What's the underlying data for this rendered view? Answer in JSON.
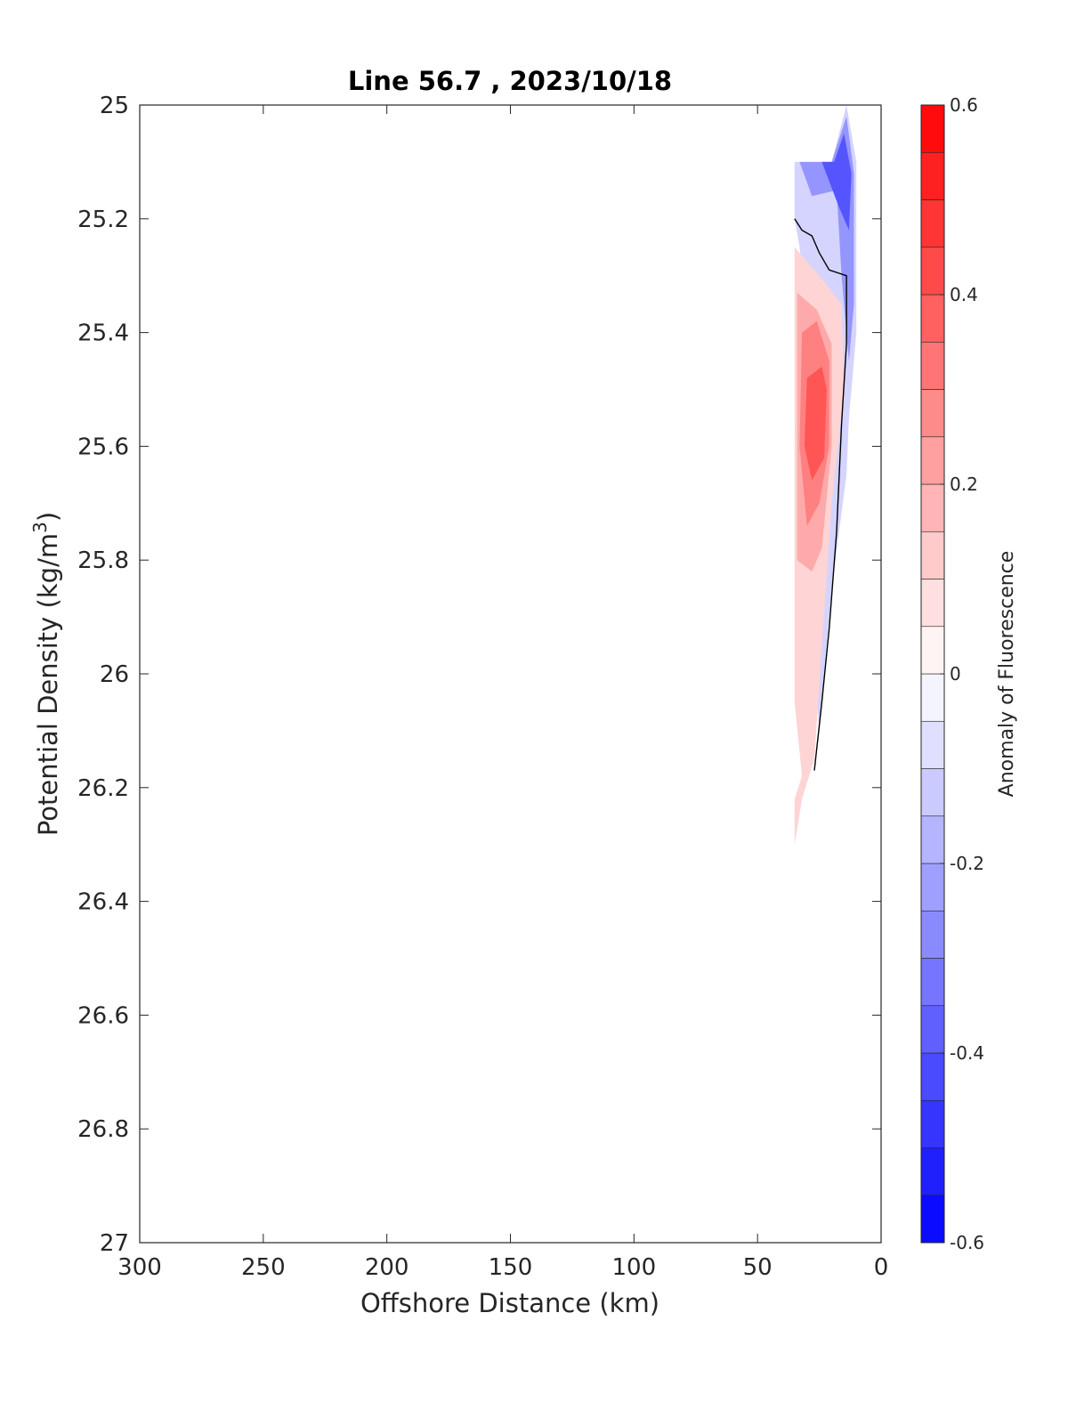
{
  "chart_data": {
    "type": "contour",
    "title": "Line 56.7 , 2023/10/18",
    "xlabel": "Offshore Distance (km)",
    "ylabel_main": "Potential Density (kg/m",
    "ylabel_sup": "3",
    "ylabel_close": ")",
    "xlim": [
      0,
      300
    ],
    "x_reversed": true,
    "ylim": [
      25,
      27
    ],
    "y_reversed": true,
    "x_ticks": [
      300,
      250,
      200,
      150,
      100,
      50,
      0
    ],
    "x_tick_labels": [
      "300",
      "250",
      "200",
      "150",
      "100",
      "50",
      "0"
    ],
    "y_ticks": [
      25,
      25.2,
      25.4,
      25.6,
      25.8,
      26,
      26.2,
      26.4,
      26.6,
      26.8,
      27
    ],
    "y_tick_labels": [
      "25",
      "25.2",
      "25.4",
      "25.6",
      "25.8",
      "26",
      "26.2",
      "26.4",
      "26.6",
      "26.8",
      "27"
    ],
    "colorbar": {
      "label": "Anomaly of Fluorescence",
      "range": [
        -0.6,
        0.6
      ],
      "step": 0.05,
      "ticks": [
        -0.6,
        -0.4,
        -0.2,
        0,
        0.2,
        0.4,
        0.6
      ],
      "tick_labels": [
        "-0.6",
        "-0.4",
        "-0.2",
        "0",
        "0.2",
        "0.4",
        "0.6"
      ],
      "colors": {
        "negative": "#0000ff",
        "zero": "#ffffff",
        "positive": "#ff0000"
      }
    },
    "regions": [
      {
        "name": "negative-anomaly-top",
        "value": -0.1,
        "points": [
          [
            35,
            25.1
          ],
          [
            20,
            25.1
          ],
          [
            14,
            25.0
          ],
          [
            10,
            25.1
          ],
          [
            10,
            25.4
          ],
          [
            13,
            25.55
          ],
          [
            14,
            25.65
          ],
          [
            20,
            25.85
          ],
          [
            23,
            26.0
          ],
          [
            25,
            26.1
          ],
          [
            28,
            25.95
          ],
          [
            30,
            25.7
          ],
          [
            30,
            25.4
          ],
          [
            33,
            25.25
          ],
          [
            35,
            25.2
          ]
        ]
      },
      {
        "name": "negative-anomaly-core",
        "value": -0.25,
        "points": [
          [
            33,
            25.1
          ],
          [
            20,
            25.1
          ],
          [
            14,
            25.02
          ],
          [
            11,
            25.12
          ],
          [
            11,
            25.35
          ],
          [
            13,
            25.45
          ],
          [
            16,
            25.3
          ],
          [
            18,
            25.15
          ],
          [
            28,
            25.16
          ]
        ]
      },
      {
        "name": "negative-anomaly-max",
        "value": -0.4,
        "points": [
          [
            24,
            25.1
          ],
          [
            19,
            25.1
          ],
          [
            15,
            25.05
          ],
          [
            12,
            25.12
          ],
          [
            13,
            25.22
          ],
          [
            17,
            25.18
          ]
        ]
      },
      {
        "name": "positive-anomaly-outer",
        "value": 0.1,
        "points": [
          [
            35,
            25.25
          ],
          [
            25,
            25.3
          ],
          [
            16,
            25.35
          ],
          [
            15,
            25.5
          ],
          [
            20,
            25.7
          ],
          [
            24,
            25.95
          ],
          [
            27,
            26.15
          ],
          [
            32,
            26.22
          ],
          [
            35,
            26.3
          ],
          [
            35,
            26.22
          ],
          [
            32,
            26.18
          ],
          [
            35,
            26.05
          ]
        ]
      },
      {
        "name": "positive-anomaly-mid",
        "value": 0.2,
        "points": [
          [
            34,
            25.33
          ],
          [
            26,
            25.36
          ],
          [
            20,
            25.42
          ],
          [
            20,
            25.6
          ],
          [
            24,
            25.78
          ],
          [
            28,
            25.82
          ],
          [
            34,
            25.8
          ]
        ]
      },
      {
        "name": "positive-anomaly-high",
        "value": 0.3,
        "points": [
          [
            32,
            25.4
          ],
          [
            26,
            25.38
          ],
          [
            21,
            25.45
          ],
          [
            21,
            25.6
          ],
          [
            25,
            25.7
          ],
          [
            30,
            25.74
          ],
          [
            33,
            25.6
          ]
        ]
      },
      {
        "name": "positive-anomaly-peak",
        "value": 0.4,
        "points": [
          [
            30,
            25.48
          ],
          [
            24,
            25.46
          ],
          [
            22,
            25.5
          ],
          [
            23,
            25.62
          ],
          [
            28,
            25.66
          ],
          [
            31,
            25.6
          ]
        ]
      }
    ],
    "zero_contour": [
      [
        35,
        25.2
      ],
      [
        32,
        25.22
      ],
      [
        28,
        25.23
      ],
      [
        25,
        25.26
      ],
      [
        21,
        25.29
      ],
      [
        14,
        25.3
      ],
      [
        14,
        25.42
      ],
      [
        16,
        25.56
      ],
      [
        18,
        25.75
      ],
      [
        21,
        25.92
      ],
      [
        24,
        26.05
      ],
      [
        27,
        26.17
      ]
    ]
  }
}
